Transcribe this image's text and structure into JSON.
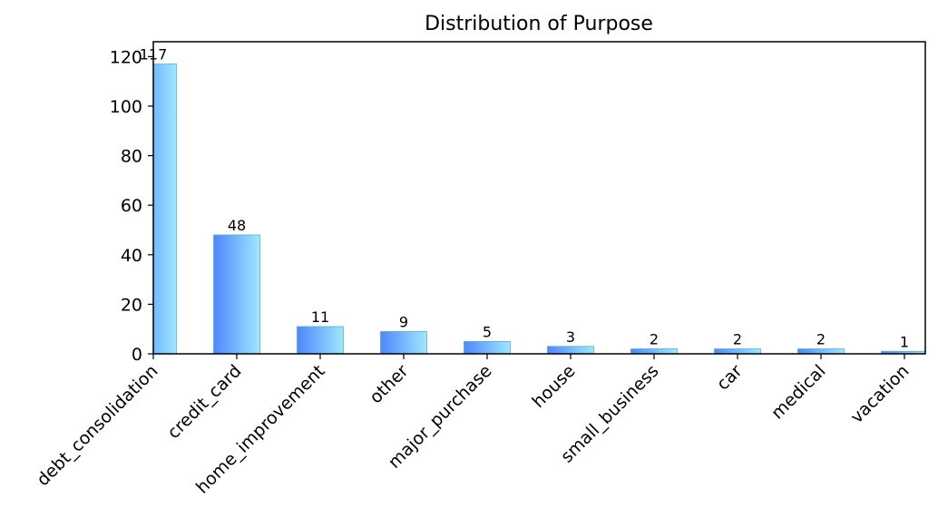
{
  "chart_data": {
    "type": "bar",
    "title": "Distribution of Purpose",
    "xlabel": "",
    "ylabel": "",
    "categories": [
      "debt_consolidation",
      "credit_card",
      "home_improvement",
      "other",
      "major_purchase",
      "house",
      "small_business",
      "car",
      "medical",
      "vacation"
    ],
    "values": [
      117,
      48,
      11,
      9,
      5,
      3,
      2,
      2,
      2,
      1
    ],
    "ylim": [
      0,
      126
    ],
    "yticks": [
      0,
      20,
      40,
      60,
      80,
      100,
      120
    ],
    "grid": false,
    "legend": "none",
    "bar_gradient": [
      "#4f86ff",
      "#9ee8ff"
    ],
    "bar_edge_color": "#5aaecc"
  }
}
